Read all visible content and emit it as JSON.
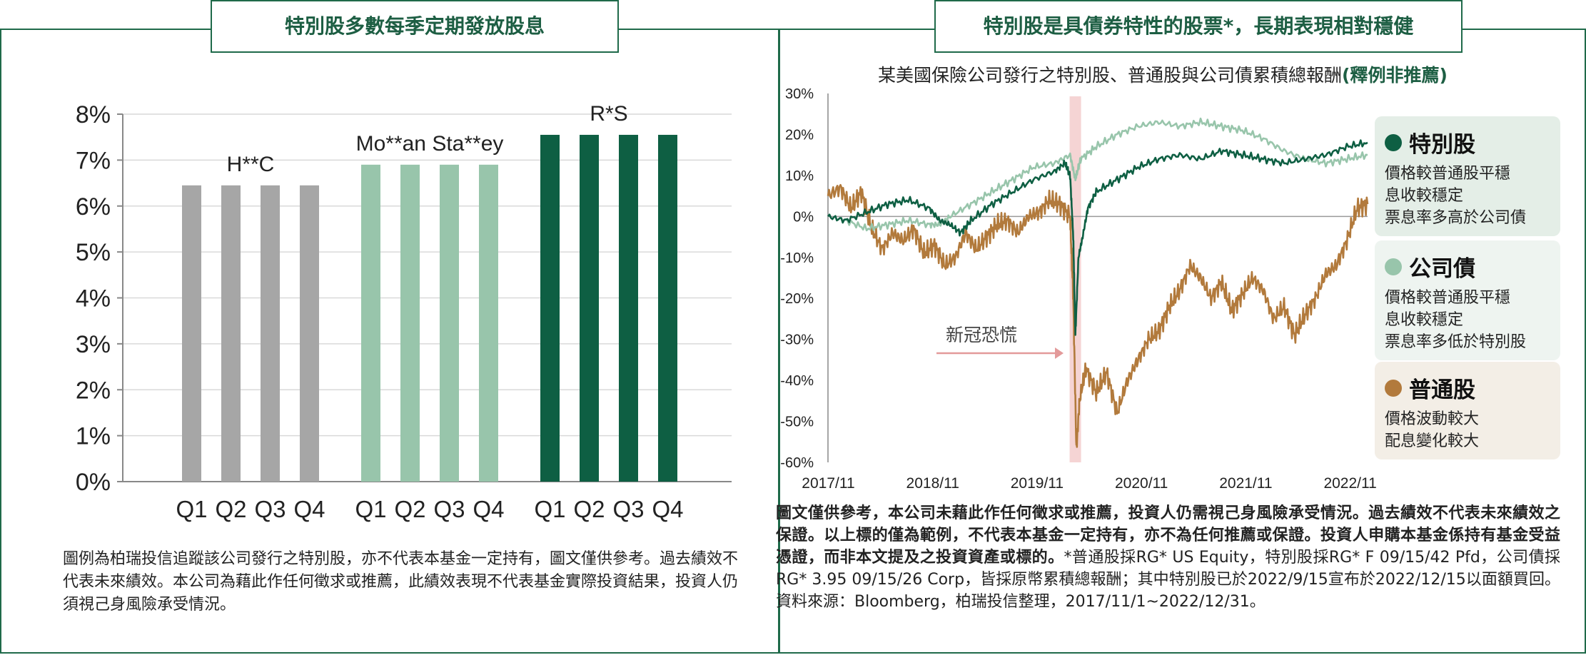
{
  "left_title": "特別股多數每季定期發放股息",
  "right_title": "特別股是具債券特性的股票*，長期表現相對穩健",
  "chart_data": [
    {
      "type": "bar",
      "ylim": [
        0,
        8
      ],
      "yticks": [
        "0%",
        "1%",
        "2%",
        "3%",
        "4%",
        "5%",
        "6%",
        "7%",
        "8%"
      ],
      "categories": [
        "Q1",
        "Q2",
        "Q3",
        "Q4"
      ],
      "groups": [
        {
          "label": "H**C",
          "color": "#a6a6a6",
          "values": [
            6.45,
            6.45,
            6.45,
            6.45
          ]
        },
        {
          "label": "Mo**an Sta**ey",
          "color": "#98c5ab",
          "values": [
            6.9,
            6.9,
            6.9,
            6.9
          ]
        },
        {
          "label": "R*S",
          "color": "#0e5f43",
          "values": [
            7.55,
            7.55,
            7.55,
            7.55
          ]
        }
      ]
    },
    {
      "type": "line",
      "title": "某美國保險公司發行之特別股、普通股與公司債累積總報酬",
      "title_highlight": "(釋例非推薦)",
      "ylim": [
        -60,
        30
      ],
      "yticks": [
        "30%",
        "20%",
        "10%",
        "0%",
        "-10%",
        "-20%",
        "-30%",
        "-40%",
        "-50%",
        "-60%"
      ],
      "xticks": [
        "2017/11",
        "2018/11",
        "2019/11",
        "2020/11",
        "2021/11",
        "2022/11"
      ],
      "xlim": [
        2017.83,
        2023.0
      ],
      "annotation": "新冠恐慌",
      "highlight_x": 2020.2,
      "series": [
        {
          "name": "特別股",
          "color": "#0e5f43",
          "points": [
            [
              2017.83,
              0
            ],
            [
              2018.0,
              -1
            ],
            [
              2018.2,
              1
            ],
            [
              2018.4,
              3
            ],
            [
              2018.6,
              4
            ],
            [
              2018.8,
              2
            ],
            [
              2018.9,
              -1
            ],
            [
              2019.0,
              -2
            ],
            [
              2019.1,
              -4
            ],
            [
              2019.2,
              -1
            ],
            [
              2019.4,
              3
            ],
            [
              2019.6,
              6
            ],
            [
              2019.8,
              9
            ],
            [
              2020.0,
              11
            ],
            [
              2020.1,
              13
            ],
            [
              2020.15,
              10
            ],
            [
              2020.18,
              -5
            ],
            [
              2020.2,
              -29
            ],
            [
              2020.23,
              -10
            ],
            [
              2020.27,
              -5
            ],
            [
              2020.32,
              2
            ],
            [
              2020.4,
              6
            ],
            [
              2020.6,
              9
            ],
            [
              2020.8,
              12
            ],
            [
              2021.0,
              14
            ],
            [
              2021.2,
              15
            ],
            [
              2021.4,
              14
            ],
            [
              2021.6,
              16
            ],
            [
              2021.8,
              15
            ],
            [
              2022.0,
              14
            ],
            [
              2022.2,
              13
            ],
            [
              2022.4,
              14
            ],
            [
              2022.6,
              15
            ],
            [
              2022.8,
              17
            ],
            [
              2023.0,
              18
            ]
          ]
        },
        {
          "name": "公司債",
          "color": "#98c5ab",
          "points": [
            [
              2017.83,
              0
            ],
            [
              2018.0,
              -1
            ],
            [
              2018.2,
              -3
            ],
            [
              2018.4,
              -2
            ],
            [
              2018.6,
              -1
            ],
            [
              2018.8,
              -2
            ],
            [
              2018.9,
              -2
            ],
            [
              2019.0,
              0
            ],
            [
              2019.2,
              3
            ],
            [
              2019.4,
              6
            ],
            [
              2019.6,
              9
            ],
            [
              2019.8,
              12
            ],
            [
              2020.0,
              13
            ],
            [
              2020.15,
              15
            ],
            [
              2020.2,
              9
            ],
            [
              2020.25,
              14
            ],
            [
              2020.4,
              17
            ],
            [
              2020.6,
              20
            ],
            [
              2020.8,
              22
            ],
            [
              2021.0,
              23
            ],
            [
              2021.2,
              22
            ],
            [
              2021.4,
              23
            ],
            [
              2021.6,
              22
            ],
            [
              2021.8,
              21
            ],
            [
              2022.0,
              19
            ],
            [
              2022.2,
              16
            ],
            [
              2022.4,
              14
            ],
            [
              2022.6,
              13
            ],
            [
              2022.8,
              14
            ],
            [
              2023.0,
              15
            ]
          ]
        },
        {
          "name": "普通股",
          "color": "#b27a3c",
          "points": [
            [
              2017.83,
              5
            ],
            [
              2017.95,
              7
            ],
            [
              2018.05,
              2
            ],
            [
              2018.15,
              6
            ],
            [
              2018.25,
              -3
            ],
            [
              2018.35,
              -8
            ],
            [
              2018.45,
              -4
            ],
            [
              2018.55,
              -6
            ],
            [
              2018.65,
              -3
            ],
            [
              2018.75,
              -9
            ],
            [
              2018.85,
              -7
            ],
            [
              2018.95,
              -12
            ],
            [
              2019.05,
              -10
            ],
            [
              2019.15,
              -4
            ],
            [
              2019.25,
              -8
            ],
            [
              2019.35,
              -5
            ],
            [
              2019.45,
              -2
            ],
            [
              2019.55,
              -1
            ],
            [
              2019.65,
              -4
            ],
            [
              2019.75,
              0
            ],
            [
              2019.85,
              1
            ],
            [
              2019.95,
              4
            ],
            [
              2020.05,
              3
            ],
            [
              2020.15,
              0
            ],
            [
              2020.18,
              -20
            ],
            [
              2020.21,
              -57
            ],
            [
              2020.24,
              -45
            ],
            [
              2020.3,
              -37
            ],
            [
              2020.4,
              -43
            ],
            [
              2020.5,
              -38
            ],
            [
              2020.6,
              -48
            ],
            [
              2020.7,
              -40
            ],
            [
              2020.8,
              -35
            ],
            [
              2020.9,
              -30
            ],
            [
              2021.0,
              -28
            ],
            [
              2021.1,
              -22
            ],
            [
              2021.2,
              -18
            ],
            [
              2021.3,
              -12
            ],
            [
              2021.4,
              -15
            ],
            [
              2021.5,
              -20
            ],
            [
              2021.6,
              -16
            ],
            [
              2021.7,
              -23
            ],
            [
              2021.8,
              -19
            ],
            [
              2021.9,
              -15
            ],
            [
              2022.0,
              -18
            ],
            [
              2022.1,
              -25
            ],
            [
              2022.2,
              -22
            ],
            [
              2022.3,
              -29
            ],
            [
              2022.4,
              -24
            ],
            [
              2022.5,
              -20
            ],
            [
              2022.6,
              -14
            ],
            [
              2022.7,
              -12
            ],
            [
              2022.8,
              -6
            ],
            [
              2022.9,
              2
            ],
            [
              2023.0,
              3
            ]
          ]
        }
      ]
    }
  ],
  "legend": [
    {
      "title": "特別股",
      "color": "#0e5f43",
      "bg": "#e4eee7",
      "lines": [
        "價格較普通股平穩",
        "息收較穩定",
        "票息率多高於公司債"
      ]
    },
    {
      "title": "公司債",
      "color": "#98c5ab",
      "bg": "#eef4f0",
      "lines": [
        "價格較普通股平穩",
        "息收較穩定",
        "票息率多低於特別股"
      ]
    },
    {
      "title": "普通股",
      "color": "#b27a3c",
      "bg": "#f3eee6",
      "lines": [
        "價格波動較大",
        "配息變化較大"
      ]
    }
  ],
  "note_left": "圖例為柏瑞投信追蹤該公司發行之特別股，亦不代表本基金一定持有，圖文僅供參考。過去績效不代表未來績效。本公司為藉此作任何徵求或推薦，此績效表現不代表基金實際投資結果，投資人仍須視己身風險承受情況。",
  "note_right_bold": "圖文僅供參考，本公司未藉此作任何徵求或推薦，投資人仍需視己身風險承受情況。過去績效不代表未來績效之保證。以上標的僅為範例，不代表本基金一定持有，亦不為任何推薦或保證。投資人申購本基金係持有基金受益憑證，而非本文提及之投資資產或標的。",
  "note_right_plain": "*普通股採RG* US Equity，特別股採RG* F 09/15/42 Pfd，公司債採RG* 3.95 09/15/26 Corp，皆採原幣累積總報酬；其中特別股已於2022/9/15宣布於2022/12/15以面額買回。資料來源：Bloomberg，柏瑞投信整理，2017/11/1~2022/12/31。"
}
